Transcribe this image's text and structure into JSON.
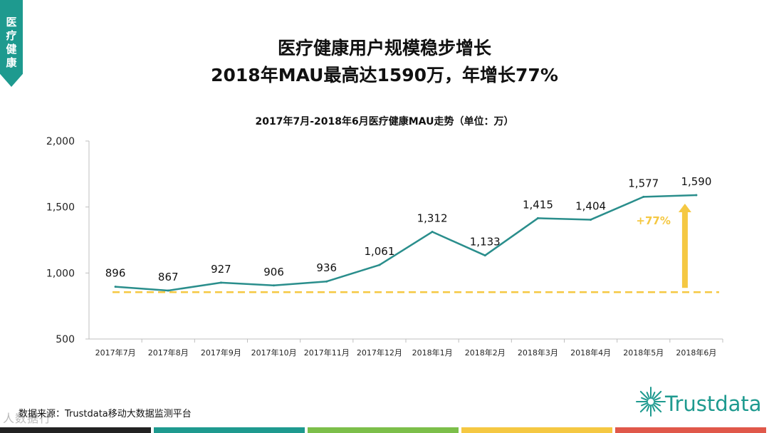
{
  "side_tag": "医疗健康",
  "title_line1": "医疗健康用户规模稳步增长",
  "title_line2": "2018年MAU最高达1590万，年增长77%",
  "source_text": "数据来源：Trustdata移动大数据监测平台",
  "logo_text": "Trustdata",
  "watermark_text": "人数据行",
  "colors": {
    "accent": "#1e9a8f",
    "line": "#2a8e8c",
    "highlight": "#f5c842",
    "bar_segments": [
      "#222222",
      "#1e9a8f",
      "#7cbf4a",
      "#f5c842",
      "#e0584a"
    ]
  },
  "chart_data": {
    "type": "line",
    "title": "2017年7月-2018年6月医疗健康MAU走势（单位：万）",
    "categories": [
      "2017年7月",
      "2017年8月",
      "2017年9月",
      "2017年10月",
      "2017年11月",
      "2017年12月",
      "2018年1月",
      "2018年2月",
      "2018年3月",
      "2018年4月",
      "2018年5月",
      "2018年6月"
    ],
    "values": [
      896,
      867,
      927,
      906,
      936,
      1061,
      1312,
      1133,
      1415,
      1404,
      1577,
      1590
    ],
    "value_labels": [
      "896",
      "867",
      "927",
      "906",
      "936",
      "1,061",
      "1,312",
      "1,133",
      "1,415",
      "1,404",
      "1,577",
      "1,590"
    ],
    "ylim": [
      500,
      2000
    ],
    "yticks": [
      500,
      1000,
      1500,
      2000
    ],
    "ytick_labels": [
      "500",
      "1,000",
      "1,500",
      "2,000"
    ],
    "baseline_value": 855,
    "growth_label": "+77%",
    "xlabel": "",
    "ylabel": ""
  }
}
